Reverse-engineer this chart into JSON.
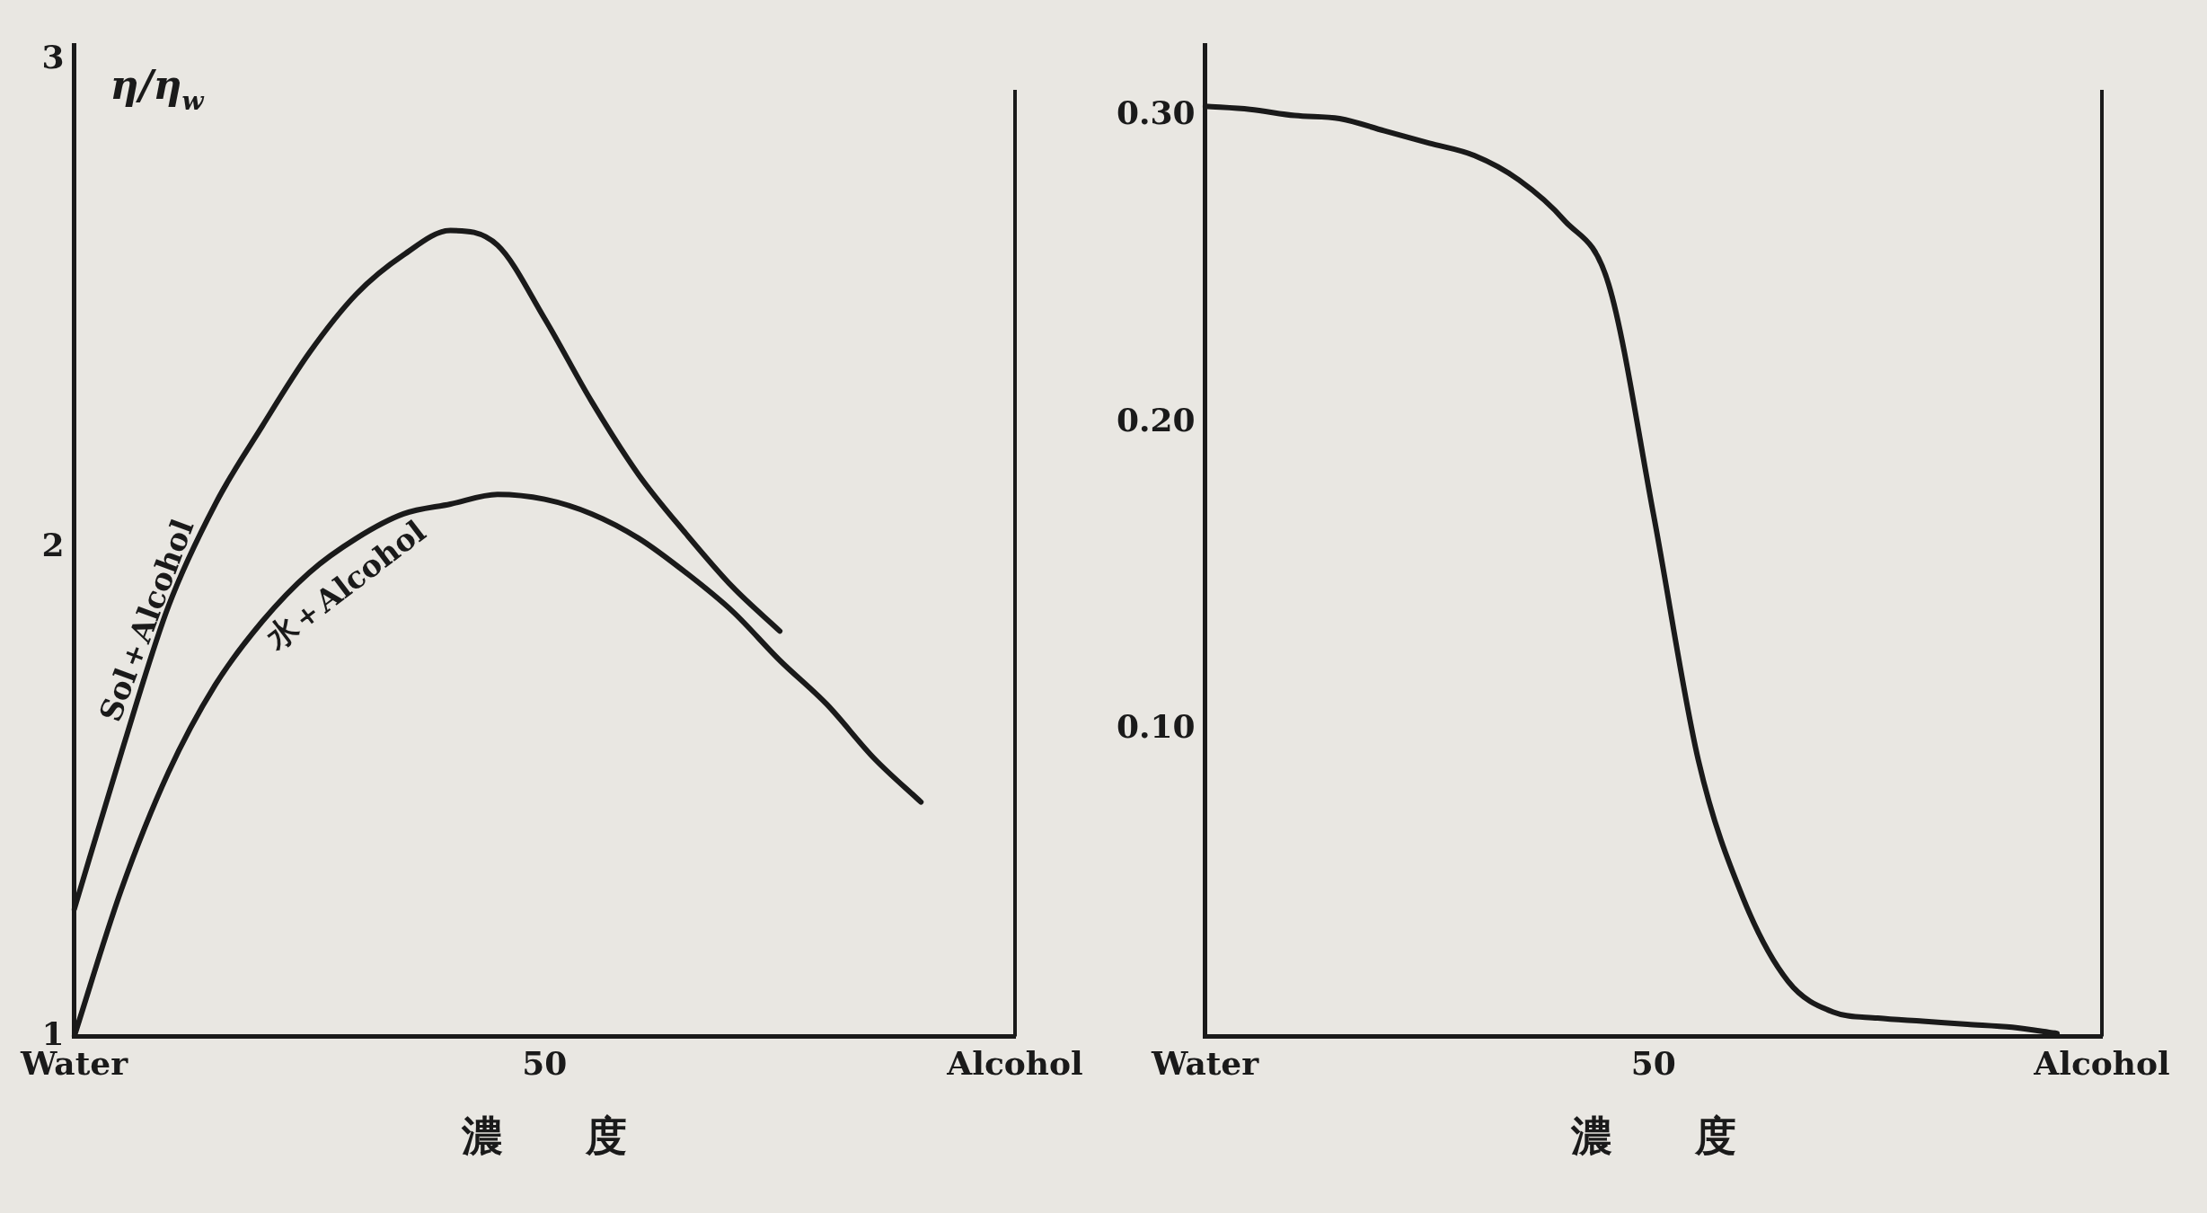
{
  "chart_data": [
    {
      "type": "line",
      "xlabel": "濃　　度",
      "ylabel": "η/η$_{w}$",
      "ylim": [
        1,
        3.03
      ],
      "yticks": [
        1,
        2,
        3
      ],
      "categories": [
        "Water",
        null,
        null,
        null,
        null,
        null,
        null,
        null,
        null,
        null,
        "50",
        null,
        null,
        null,
        null,
        null,
        null,
        null,
        null,
        null,
        "Alcohol"
      ],
      "series": [
        {
          "name": "Sol＋Alcohol",
          "color": "#1a1a1a",
          "values": [
            1.26,
            1.58,
            1.88,
            2.09,
            2.25,
            2.4,
            2.52,
            2.6,
            2.65,
            2.62,
            2.47,
            2.3,
            2.15,
            2.03,
            1.92,
            1.83,
            null,
            null,
            null,
            null,
            null
          ]
        },
        {
          "name": "水＋Alcohol",
          "color": "#1a1a1a",
          "values": [
            1.0,
            1.3,
            1.54,
            1.72,
            1.85,
            1.95,
            2.02,
            2.07,
            2.09,
            2.11,
            2.1,
            2.07,
            2.02,
            1.95,
            1.87,
            1.77,
            1.68,
            1.57,
            1.48,
            null,
            null
          ]
        }
      ]
    },
    {
      "type": "line",
      "xlabel": "濃　　度",
      "ylim": [
        0,
        0.323
      ],
      "yticks": [
        {
          "value": 0.1,
          "label": "0.10"
        },
        {
          "value": 0.2,
          "label": "0.20"
        },
        {
          "value": 0.3,
          "label": "0.30"
        }
      ],
      "categories": [
        "Water",
        null,
        null,
        null,
        null,
        null,
        null,
        null,
        null,
        null,
        "50",
        null,
        null,
        null,
        null,
        null,
        null,
        null,
        null,
        null,
        "Alcohol"
      ],
      "series": [
        {
          "color": "#1a1a1a",
          "values": [
            0.303,
            0.302,
            0.3,
            0.299,
            0.295,
            0.291,
            0.287,
            0.279,
            0.266,
            0.245,
            0.17,
            0.09,
            0.045,
            0.018,
            0.008,
            0.006,
            0.005,
            0.004,
            0.003,
            0.001,
            null
          ]
        }
      ]
    }
  ]
}
